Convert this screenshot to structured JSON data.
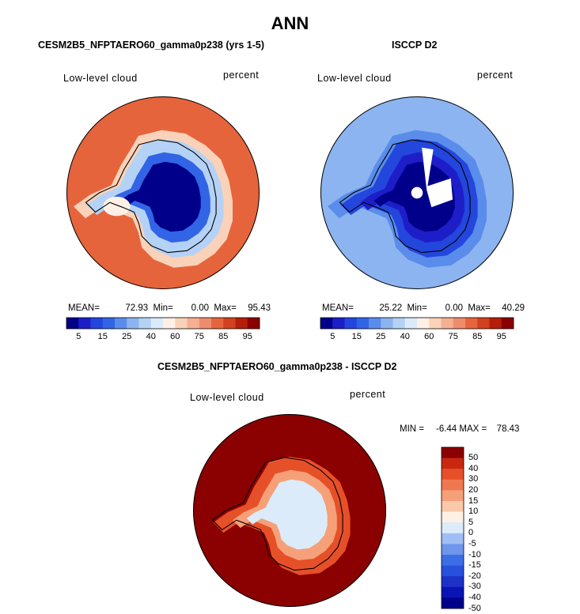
{
  "chart_data": {
    "type": "heatmap",
    "title": "ANN",
    "projection": "south-polar-stereographic",
    "panels": [
      {
        "id": "model",
        "title": "CESM2B5_NFPTAERO60_gamma0p238 (yrs 1-5)",
        "variable": "Low-level cloud",
        "units": "percent",
        "stats": {
          "mean_label": "MEAN=",
          "mean": "72.93",
          "min_label": "Min=",
          "min": "0.00",
          "max_label": "Max=",
          "max": "95.43"
        },
        "colorbar_ticks": [
          "5",
          "15",
          "25",
          "40",
          "60",
          "75",
          "85",
          "95"
        ],
        "field": {
          "ocean_value": 82,
          "antarctic_interior": 3,
          "ice_margin": 30,
          "peninsula_region": 55,
          "coast_band": 65
        }
      },
      {
        "id": "obs",
        "title": "ISCCP D2",
        "variable": "Low-level cloud",
        "units": "percent",
        "stats": {
          "mean_label": "MEAN=",
          "mean": "25.22",
          "min_label": "Min=",
          "min": "0.00",
          "max_label": "Max=",
          "max": "40.29"
        },
        "colorbar_ticks": [
          "5",
          "15",
          "25",
          "40",
          "60",
          "75",
          "85",
          "95"
        ],
        "field": {
          "ocean_value": 28,
          "antarctic_interior": 4,
          "ice_margin": 12,
          "coast_band": 20,
          "missing": "white wedge near pole"
        }
      },
      {
        "id": "diff",
        "title": "CESM2B5_NFPTAERO60_gamma0p238 - ISCCP D2",
        "variable": "Low-level cloud",
        "units": "percent",
        "stats": {
          "min_label": "MIN =",
          "min": "-6.44",
          "max_label": "MAX =",
          "max": "78.43"
        },
        "colorbar_ticks": [
          "50",
          "40",
          "30",
          "20",
          "15",
          "10",
          "5",
          "0",
          "-5",
          "-10",
          "-15",
          "-20",
          "-30",
          "-40",
          "-50"
        ],
        "field": {
          "ocean_value": 55,
          "antarctic_interior": -3,
          "ice_margin": 25,
          "coast_band": 40
        }
      }
    ],
    "abs_colors": [
      "#00008b",
      "#1e1ec8",
      "#2346dc",
      "#3264e6",
      "#5a8ceb",
      "#8cb4f0",
      "#b4d2f5",
      "#dcebfa",
      "#fff0e6",
      "#fad2b9",
      "#f5af91",
      "#f08c6e",
      "#e6643c",
      "#d2411e",
      "#b41e0a",
      "#8b0000"
    ],
    "diff_colors": [
      "#00008b",
      "#0a14b4",
      "#1e32c8",
      "#2850dc",
      "#3c6ee6",
      "#6e96eb",
      "#a0bef5",
      "#dcebfa",
      "#fff0e6",
      "#fac8aa",
      "#f5a078",
      "#f07850",
      "#e65028",
      "#c82810",
      "#8b0000"
    ]
  }
}
